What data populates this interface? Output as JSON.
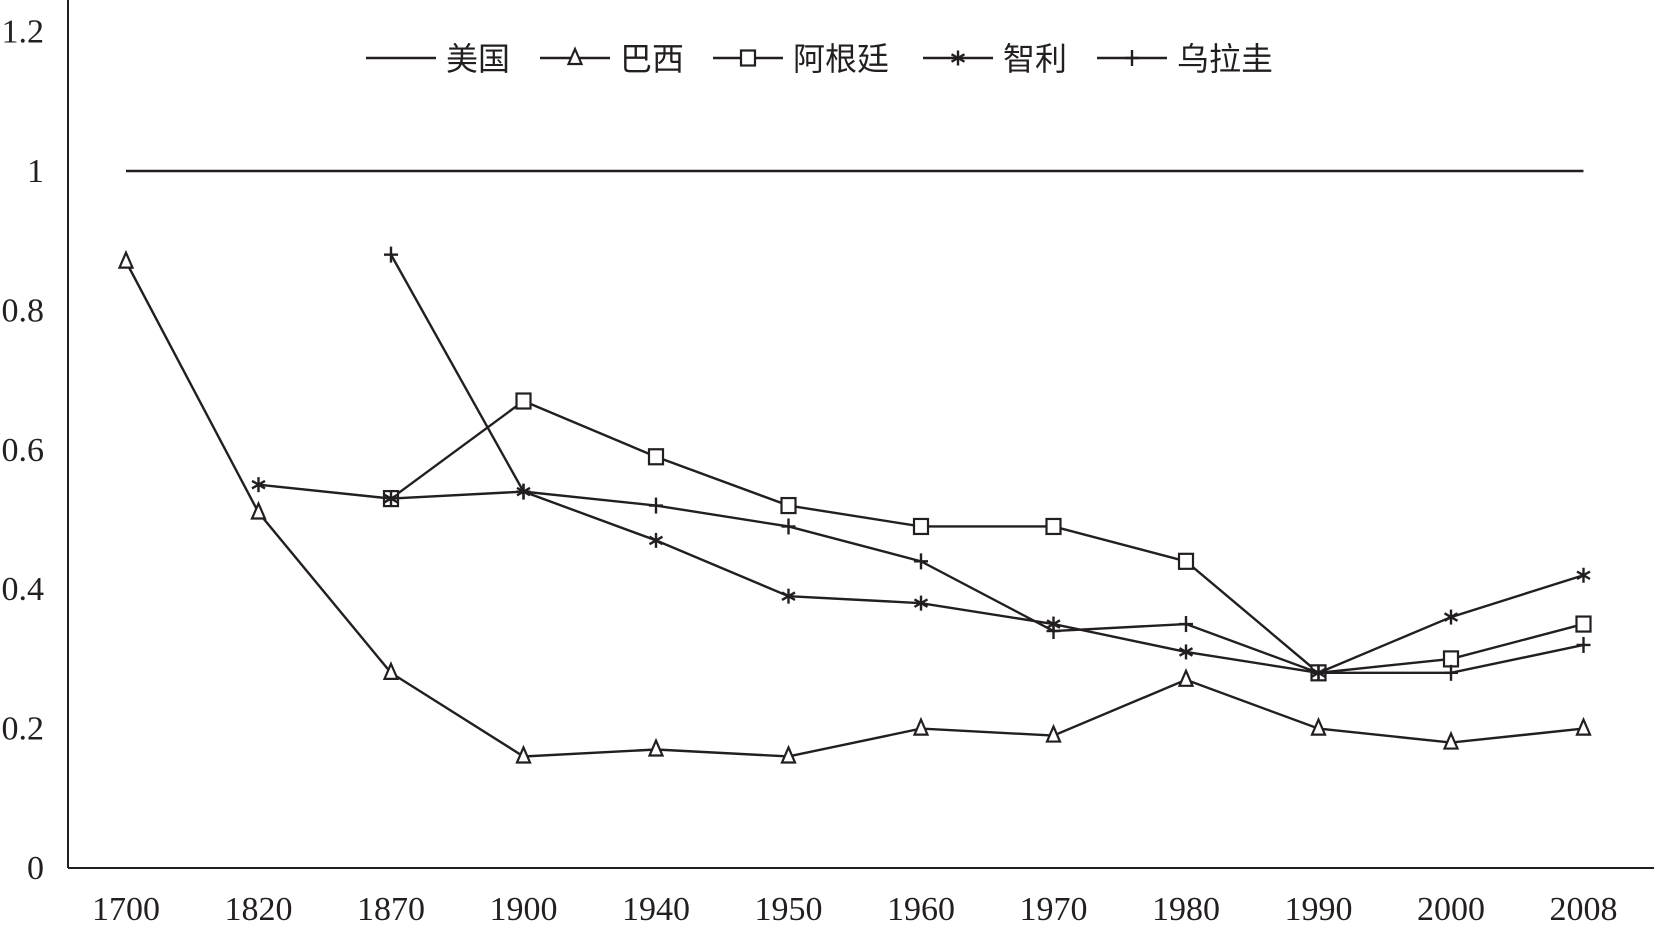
{
  "chart_data": {
    "type": "line",
    "categories": [
      "1700",
      "1820",
      "1870",
      "1900",
      "1940",
      "1950",
      "1960",
      "1970",
      "1980",
      "1990",
      "2000",
      "2008"
    ],
    "ylim": [
      0,
      1.2
    ],
    "yticks": [
      "0",
      "0.2",
      "0.4",
      "0.6",
      "0.8",
      "1",
      "1.2"
    ],
    "title": "",
    "xlabel": "",
    "ylabel": "",
    "grid": false,
    "legend_position": "top-center",
    "series": [
      {
        "name": "美国",
        "marker": "none",
        "values": [
          1,
          1,
          1,
          1,
          1,
          1,
          1,
          1,
          1,
          1,
          1,
          1
        ]
      },
      {
        "name": "巴西",
        "marker": "triangle",
        "values": [
          0.87,
          0.51,
          0.28,
          0.16,
          0.17,
          0.16,
          0.2,
          0.19,
          0.27,
          0.2,
          0.18,
          0.2
        ]
      },
      {
        "name": "阿根廷",
        "marker": "square",
        "values": [
          null,
          null,
          0.53,
          0.67,
          0.59,
          0.52,
          0.49,
          0.49,
          0.44,
          0.28,
          0.3,
          0.35
        ]
      },
      {
        "name": "智利",
        "marker": "asterisk",
        "values": [
          null,
          0.55,
          0.53,
          0.54,
          0.47,
          0.39,
          0.38,
          0.35,
          0.31,
          0.28,
          0.36,
          0.42
        ]
      },
      {
        "name": "乌拉圭",
        "marker": "plus",
        "values": [
          null,
          null,
          0.88,
          0.54,
          0.52,
          0.49,
          0.44,
          0.34,
          0.35,
          0.28,
          0.28,
          0.32
        ]
      }
    ]
  }
}
